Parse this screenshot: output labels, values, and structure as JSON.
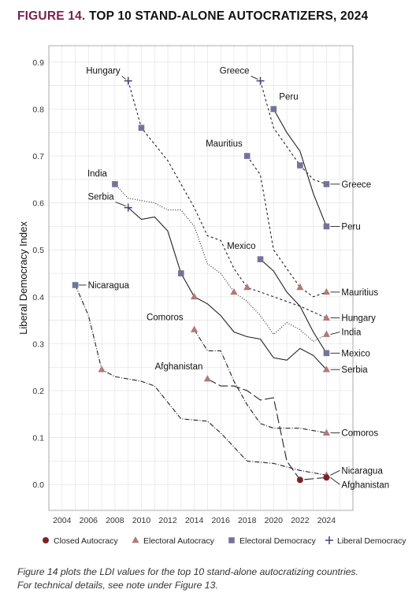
{
  "figure": {
    "number": "FIGURE 14.",
    "title": "TOP 10 STAND-ALONE AUTOCRATIZERS, 2024",
    "caption_lines": [
      "Figure 14 plots the LDI values for the top 10 stand-alone autocratizing countries.",
      "For technical details, see note under Figure 13."
    ]
  },
  "chart_data": {
    "type": "line",
    "title": "",
    "ylabel": "Liberal Democracy Index",
    "xlabel": "",
    "xlim": [
      2003,
      2026
    ],
    "ylim": [
      -0.055,
      0.935
    ],
    "x_ticks": [
      2004,
      2006,
      2008,
      2010,
      2012,
      2014,
      2016,
      2018,
      2020,
      2022,
      2024
    ],
    "y_ticks": [
      0.0,
      0.1,
      0.2,
      0.3,
      0.4,
      0.5,
      0.6,
      0.7,
      0.8,
      0.9
    ],
    "grid": true,
    "legend_position": "bottom",
    "colors": {
      "line": "#222222",
      "closed_autocracy": "#7a2424",
      "electoral_autocracy": "#b07a78",
      "electoral_democracy": "#74749a",
      "liberal_democracy": "#46407a",
      "grid": "#e4e4e4",
      "axis": "#999999"
    },
    "legend": [
      {
        "key": "closed_autocracy",
        "label": "Closed Autocracy",
        "marker": "circle"
      },
      {
        "key": "electoral_autocracy",
        "label": "Electoral Autocracy",
        "marker": "triangle"
      },
      {
        "key": "electoral_democracy",
        "label": "Electoral Democracy",
        "marker": "square"
      },
      {
        "key": "liberal_democracy",
        "label": "Liberal Democracy",
        "marker": "plus"
      }
    ],
    "series": [
      {
        "name": "Hungary",
        "dash": "3,3",
        "values": [
          [
            2009,
            0.86
          ],
          [
            2010,
            0.76
          ],
          [
            2012,
            0.69
          ],
          [
            2014,
            0.59
          ],
          [
            2015,
            0.53
          ],
          [
            2016,
            0.52
          ],
          [
            2017,
            0.46
          ],
          [
            2018,
            0.42
          ],
          [
            2020,
            0.4
          ],
          [
            2022,
            0.38
          ],
          [
            2024,
            0.355
          ]
        ],
        "markers": [
          {
            "x": 2009,
            "y": 0.86,
            "type": "liberal_democracy"
          },
          {
            "x": 2010,
            "y": 0.76,
            "type": "electoral_democracy"
          },
          {
            "x": 2018,
            "y": 0.42,
            "type": "electoral_autocracy"
          },
          {
            "x": 2024,
            "y": 0.355,
            "type": "electoral_autocracy"
          }
        ],
        "start_label": {
          "x": 2009,
          "y": 0.86,
          "text": "Hungary"
        },
        "end_label": {
          "text": "Hungary"
        }
      },
      {
        "name": "Greece",
        "dash": "3,3",
        "values": [
          [
            2019,
            0.86
          ],
          [
            2020,
            0.76
          ],
          [
            2021,
            0.72
          ],
          [
            2022,
            0.68
          ],
          [
            2023,
            0.65
          ],
          [
            2024,
            0.64
          ]
        ],
        "markers": [
          {
            "x": 2019,
            "y": 0.86,
            "type": "liberal_democracy"
          },
          {
            "x": 2022,
            "y": 0.68,
            "type": "electoral_democracy"
          },
          {
            "x": 2024,
            "y": 0.64,
            "type": "electoral_democracy"
          }
        ],
        "start_label": {
          "x": 2019,
          "y": 0.86,
          "text": "Greece"
        },
        "end_label": {
          "text": "Greece"
        }
      },
      {
        "name": "Peru",
        "dash": "",
        "values": [
          [
            2020,
            0.8
          ],
          [
            2021,
            0.75
          ],
          [
            2022,
            0.71
          ],
          [
            2023,
            0.62
          ],
          [
            2024,
            0.55
          ]
        ],
        "markers": [
          {
            "x": 2020,
            "y": 0.8,
            "type": "electoral_democracy"
          },
          {
            "x": 2024,
            "y": 0.55,
            "type": "electoral_democracy"
          }
        ],
        "start_label": {
          "x": 2020,
          "y": 0.8,
          "text": "Peru"
        },
        "end_label": {
          "text": "Peru"
        }
      },
      {
        "name": "Mauritius",
        "dash": "3,3",
        "values": [
          [
            2018,
            0.7
          ],
          [
            2019,
            0.66
          ],
          [
            2020,
            0.5
          ],
          [
            2021,
            0.46
          ],
          [
            2022,
            0.42
          ],
          [
            2023,
            0.4
          ],
          [
            2024,
            0.41
          ]
        ],
        "markers": [
          {
            "x": 2018,
            "y": 0.7,
            "type": "electoral_democracy"
          },
          {
            "x": 2022,
            "y": 0.42,
            "type": "electoral_autocracy"
          },
          {
            "x": 2024,
            "y": 0.41,
            "type": "electoral_autocracy"
          }
        ],
        "start_label": {
          "x": 2018,
          "y": 0.7,
          "text": "Mauritius"
        },
        "end_label": {
          "text": "Mauritius"
        }
      },
      {
        "name": "India",
        "dash": "1,2",
        "values": [
          [
            2008,
            0.64
          ],
          [
            2009,
            0.61
          ],
          [
            2011,
            0.6
          ],
          [
            2012,
            0.585
          ],
          [
            2013,
            0.585
          ],
          [
            2014,
            0.55
          ],
          [
            2015,
            0.47
          ],
          [
            2016,
            0.45
          ],
          [
            2017,
            0.41
          ],
          [
            2018,
            0.39
          ],
          [
            2019,
            0.36
          ],
          [
            2020,
            0.32
          ],
          [
            2021,
            0.345
          ],
          [
            2022,
            0.33
          ],
          [
            2023,
            0.305
          ],
          [
            2024,
            0.32
          ]
        ],
        "markers": [
          {
            "x": 2008,
            "y": 0.64,
            "type": "electoral_democracy"
          },
          {
            "x": 2017,
            "y": 0.41,
            "type": "electoral_autocracy"
          },
          {
            "x": 2024,
            "y": 0.32,
            "type": "electoral_autocracy"
          }
        ],
        "start_label": {
          "x": 2008,
          "y": 0.64,
          "text": "India"
        },
        "end_label": {
          "text": "India"
        }
      },
      {
        "name": "Serbia",
        "dash": "",
        "values": [
          [
            2009,
            0.59
          ],
          [
            2010,
            0.565
          ],
          [
            2011,
            0.57
          ],
          [
            2012,
            0.54
          ],
          [
            2013,
            0.45
          ],
          [
            2014,
            0.4
          ],
          [
            2015,
            0.385
          ],
          [
            2016,
            0.36
          ],
          [
            2017,
            0.325
          ],
          [
            2018,
            0.315
          ],
          [
            2019,
            0.31
          ],
          [
            2020,
            0.27
          ],
          [
            2021,
            0.265
          ],
          [
            2022,
            0.29
          ],
          [
            2023,
            0.275
          ],
          [
            2024,
            0.245
          ]
        ],
        "markers": [
          {
            "x": 2009,
            "y": 0.59,
            "type": "liberal_democracy"
          },
          {
            "x": 2013,
            "y": 0.45,
            "type": "electoral_democracy"
          },
          {
            "x": 2014,
            "y": 0.4,
            "type": "electoral_autocracy"
          },
          {
            "x": 2024,
            "y": 0.245,
            "type": "electoral_autocracy"
          }
        ],
        "start_label": {
          "x": 2009,
          "y": 0.59,
          "text": "Serbia"
        },
        "end_label": {
          "text": "Serbia"
        }
      },
      {
        "name": "Mexico",
        "dash": "",
        "values": [
          [
            2019,
            0.48
          ],
          [
            2020,
            0.455
          ],
          [
            2021,
            0.41
          ],
          [
            2022,
            0.38
          ],
          [
            2023,
            0.325
          ],
          [
            2024,
            0.28
          ]
        ],
        "markers": [
          {
            "x": 2019,
            "y": 0.48,
            "type": "electoral_democracy"
          },
          {
            "x": 2024,
            "y": 0.28,
            "type": "electoral_democracy"
          }
        ],
        "start_label": {
          "x": 2019,
          "y": 0.48,
          "text": "Mexico"
        },
        "end_label": {
          "text": "Mexico"
        }
      },
      {
        "name": "Nicaragua",
        "dash": "6,2,1,2",
        "values": [
          [
            2005,
            0.425
          ],
          [
            2006,
            0.36
          ],
          [
            2007,
            0.245
          ],
          [
            2008,
            0.23
          ],
          [
            2010,
            0.22
          ],
          [
            2011,
            0.21
          ],
          [
            2013,
            0.14
          ],
          [
            2015,
            0.135
          ],
          [
            2016,
            0.11
          ],
          [
            2018,
            0.05
          ],
          [
            2020,
            0.045
          ],
          [
            2022,
            0.03
          ],
          [
            2024,
            0.02
          ]
        ],
        "markers": [
          {
            "x": 2005,
            "y": 0.425,
            "type": "electoral_democracy"
          },
          {
            "x": 2007,
            "y": 0.245,
            "type": "electoral_autocracy"
          },
          {
            "x": 2024,
            "y": 0.02,
            "type": "electoral_autocracy"
          }
        ],
        "start_label": {
          "x": 2005,
          "y": 0.425,
          "text": "Nicaragua"
        },
        "end_label": {
          "text": "Nicaragua"
        }
      },
      {
        "name": "Comoros",
        "dash": "6,2,1,2",
        "values": [
          [
            2014,
            0.33
          ],
          [
            2015,
            0.285
          ],
          [
            2016,
            0.285
          ],
          [
            2017,
            0.22
          ],
          [
            2018,
            0.17
          ],
          [
            2019,
            0.13
          ],
          [
            2020,
            0.12
          ],
          [
            2022,
            0.12
          ],
          [
            2023,
            0.115
          ],
          [
            2024,
            0.11
          ]
        ],
        "markers": [
          {
            "x": 2014,
            "y": 0.33,
            "type": "electoral_autocracy"
          },
          {
            "x": 2024,
            "y": 0.11,
            "type": "electoral_autocracy"
          }
        ],
        "start_label": {
          "x": 2014,
          "y": 0.33,
          "text": "Comoros"
        },
        "end_label": {
          "text": "Comoros"
        }
      },
      {
        "name": "Afghanistan",
        "dash": "12,4",
        "values": [
          [
            2015,
            0.225
          ],
          [
            2016,
            0.21
          ],
          [
            2017,
            0.21
          ],
          [
            2018,
            0.2
          ],
          [
            2019,
            0.18
          ],
          [
            2020,
            0.185
          ],
          [
            2021,
            0.05
          ],
          [
            2022,
            0.01
          ],
          [
            2024,
            0.015
          ]
        ],
        "markers": [
          {
            "x": 2015,
            "y": 0.225,
            "type": "electoral_autocracy"
          },
          {
            "x": 2022,
            "y": 0.01,
            "type": "closed_autocracy"
          },
          {
            "x": 2024,
            "y": 0.015,
            "type": "closed_autocracy"
          }
        ],
        "start_label": {
          "x": 2015,
          "y": 0.225,
          "text": "Afghanistan"
        },
        "end_label": {
          "text": "Afghanistan"
        }
      }
    ]
  }
}
